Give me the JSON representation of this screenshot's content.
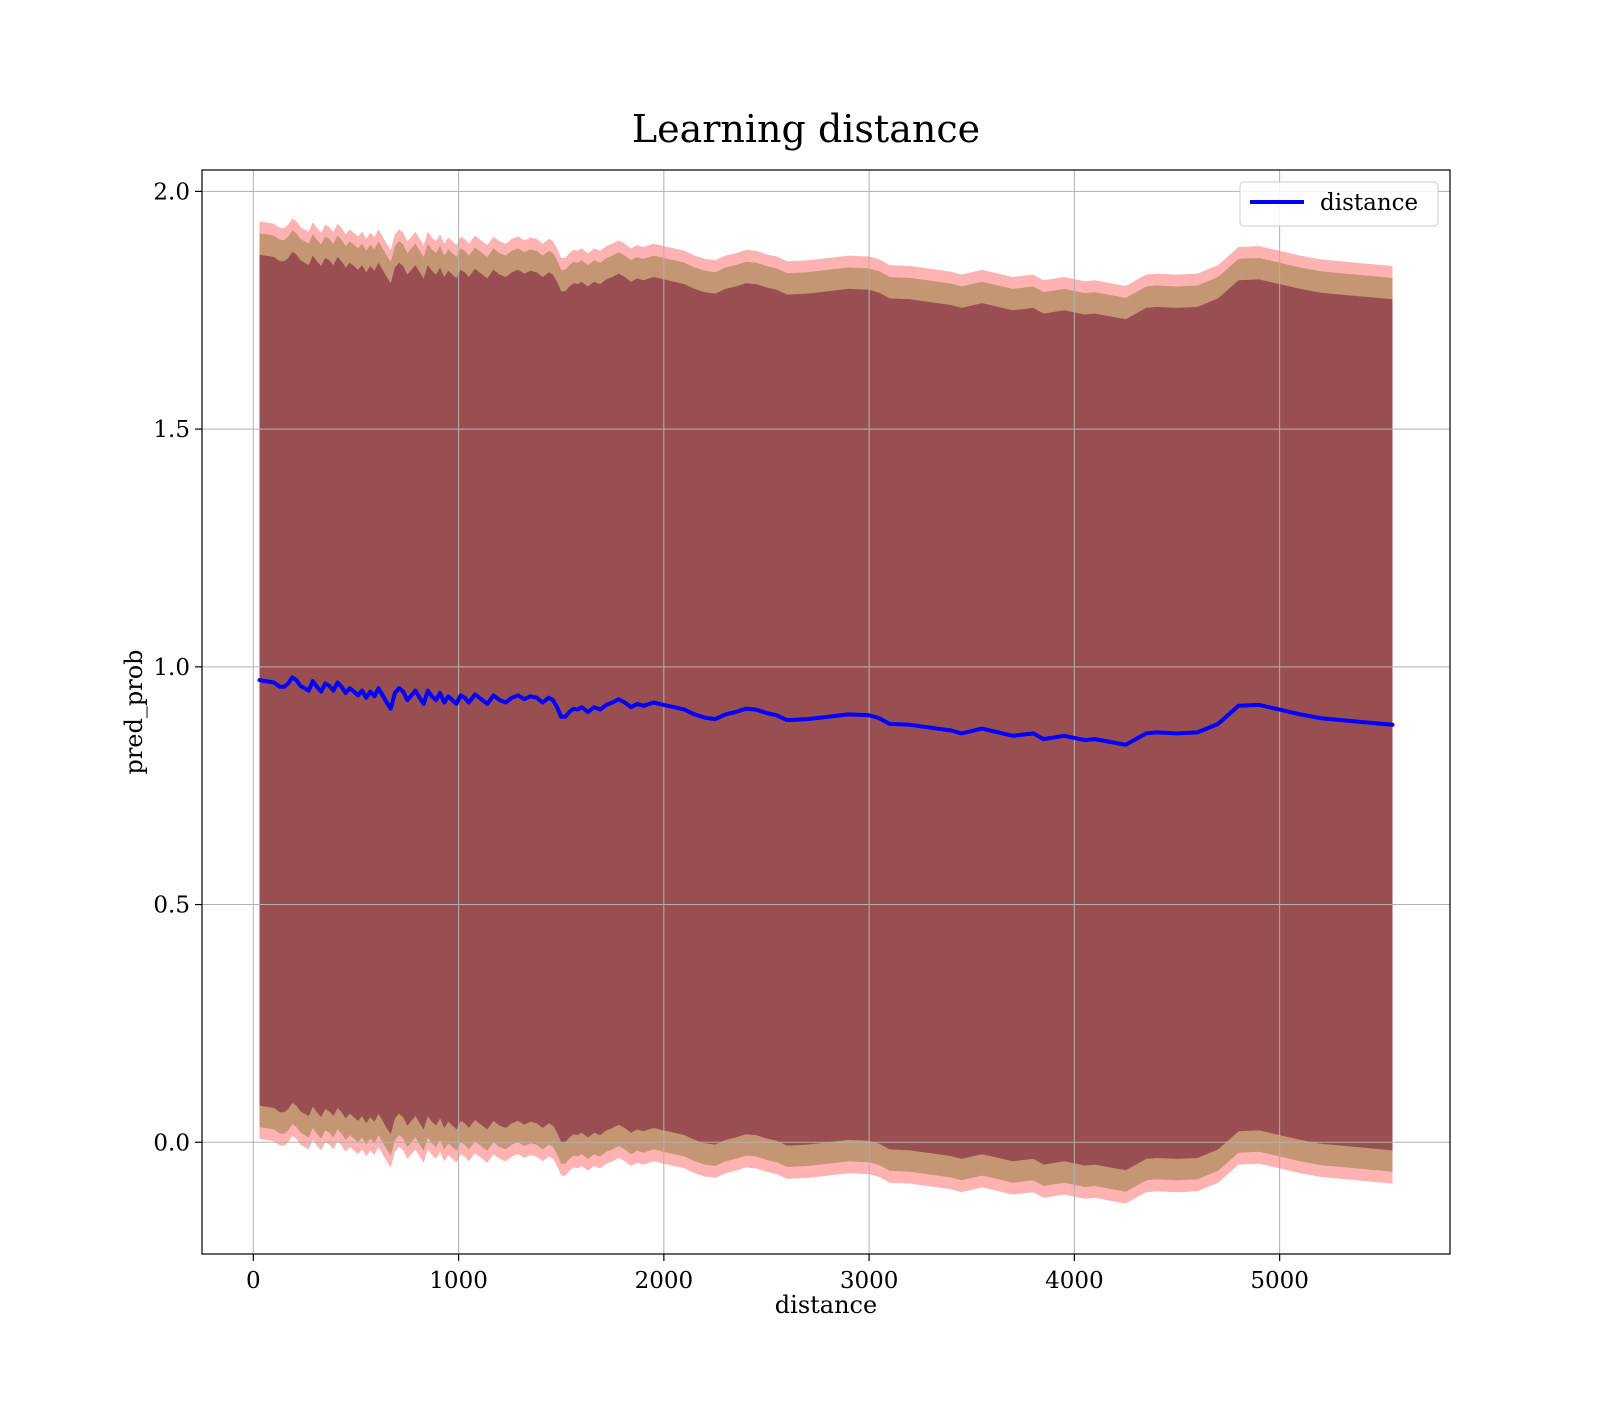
{
  "chart_data": {
    "type": "area",
    "title": "Learning distance",
    "xlabel": "distance",
    "ylabel": "pred_prob",
    "xlim": [
      -250,
      5830
    ],
    "ylim": [
      -0.235,
      2.045
    ],
    "xticks": [
      0,
      1000,
      2000,
      3000,
      4000,
      5000
    ],
    "xtick_labels": [
      "0",
      "1000",
      "2000",
      "3000",
      "4000",
      "5000"
    ],
    "yticks": [
      0.0,
      0.5,
      1.0,
      1.5,
      2.0
    ],
    "ytick_labels": [
      "0.0",
      "0.5",
      "1.0",
      "1.5",
      "2.0"
    ],
    "grid": true,
    "legend": {
      "position": "top-right",
      "entries": [
        "distance"
      ]
    },
    "colors": {
      "line": "#0000ff",
      "outer_band": "#ff0000",
      "mid_band": "#8b7a35",
      "inner_band": "#7c1f3a",
      "grid": "#b0b0b0"
    },
    "band_offsets": {
      "inner": 0.895,
      "mid": 0.94,
      "outer": 0.965
    },
    "series": [
      {
        "name": "distance",
        "x": [
          30,
          60,
          100,
          130,
          150,
          170,
          190,
          210,
          230,
          250,
          270,
          290,
          310,
          330,
          350,
          370,
          390,
          410,
          430,
          450,
          470,
          490,
          510,
          530,
          550,
          570,
          590,
          610,
          630,
          650,
          670,
          690,
          710,
          730,
          750,
          770,
          790,
          810,
          830,
          850,
          870,
          890,
          910,
          930,
          950,
          970,
          990,
          1010,
          1030,
          1050,
          1080,
          1110,
          1140,
          1170,
          1200,
          1230,
          1260,
          1290,
          1320,
          1350,
          1380,
          1410,
          1440,
          1460,
          1480,
          1500,
          1520,
          1540,
          1560,
          1580,
          1600,
          1630,
          1660,
          1690,
          1720,
          1750,
          1780,
          1810,
          1840,
          1870,
          1900,
          1950,
          2000,
          2050,
          2100,
          2150,
          2200,
          2250,
          2300,
          2350,
          2400,
          2450,
          2500,
          2550,
          2600,
          2700,
          2800,
          2900,
          3000,
          3050,
          3100,
          3200,
          3300,
          3400,
          3450,
          3550,
          3600,
          3700,
          3800,
          3850,
          3950,
          4050,
          4100,
          4200,
          4250,
          4300,
          4350,
          4400,
          4500,
          4600,
          4700,
          4800,
          4900,
          5000,
          5100,
          5200,
          5300,
          5400,
          5550
        ],
        "y": [
          0.972,
          0.97,
          0.967,
          0.958,
          0.958,
          0.965,
          0.978,
          0.972,
          0.96,
          0.955,
          0.95,
          0.97,
          0.958,
          0.948,
          0.965,
          0.96,
          0.95,
          0.967,
          0.958,
          0.945,
          0.955,
          0.948,
          0.94,
          0.95,
          0.935,
          0.948,
          0.938,
          0.955,
          0.94,
          0.925,
          0.912,
          0.945,
          0.955,
          0.948,
          0.93,
          0.94,
          0.95,
          0.935,
          0.922,
          0.95,
          0.938,
          0.93,
          0.945,
          0.925,
          0.938,
          0.93,
          0.922,
          0.94,
          0.935,
          0.925,
          0.942,
          0.932,
          0.922,
          0.94,
          0.93,
          0.925,
          0.935,
          0.94,
          0.932,
          0.938,
          0.935,
          0.925,
          0.935,
          0.93,
          0.915,
          0.895,
          0.895,
          0.905,
          0.912,
          0.91,
          0.915,
          0.905,
          0.915,
          0.91,
          0.92,
          0.925,
          0.932,
          0.925,
          0.915,
          0.922,
          0.918,
          0.925,
          0.92,
          0.915,
          0.91,
          0.9,
          0.893,
          0.89,
          0.9,
          0.905,
          0.912,
          0.91,
          0.903,
          0.898,
          0.888,
          0.89,
          0.895,
          0.9,
          0.898,
          0.892,
          0.88,
          0.878,
          0.872,
          0.866,
          0.86,
          0.87,
          0.865,
          0.855,
          0.86,
          0.848,
          0.855,
          0.846,
          0.848,
          0.84,
          0.836,
          0.848,
          0.86,
          0.862,
          0.86,
          0.862,
          0.88,
          0.918,
          0.92,
          0.91,
          0.9,
          0.892,
          0.888,
          0.884,
          0.878
        ]
      }
    ]
  }
}
